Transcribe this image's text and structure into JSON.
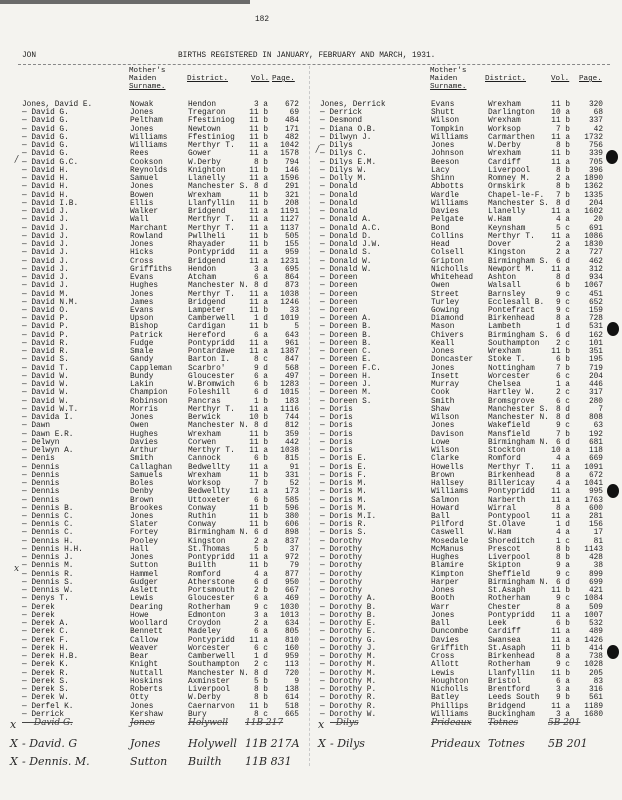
{
  "page_number": "182",
  "section_code": "JON",
  "title": "BIRTHS REGISTERED IN JANUARY, FEBRUARY AND MARCH, 1931.",
  "columns": {
    "mother_1": "Mother's",
    "mother_2": "Maiden",
    "mother_3": "Surname.",
    "district": "District.",
    "vol": "Vol.",
    "page": "Page."
  },
  "left": {
    "entries": [
      [
        "Jones, David E.",
        "Nowak",
        "Hendon",
        "3 a",
        "672"
      ],
      [
        "— David G.",
        "Jones",
        "Tregaron",
        "11 b",
        "69"
      ],
      [
        "— David G.",
        "Peltham",
        "Ffestiniog",
        "11 b",
        "484"
      ],
      [
        "— David G.",
        "Jones",
        "Newtown",
        "11 b",
        "171"
      ],
      [
        "— David G.",
        "Williams",
        "Ffestiniog",
        "11 b",
        "482"
      ],
      [
        "— David G.",
        "Williams",
        "Merthyr T.",
        "11 a",
        "1042"
      ],
      [
        "— David G.",
        "Rees",
        "Gower",
        "11 a",
        "1578"
      ],
      [
        "— David G.C.",
        "Cookson",
        "W.Derby",
        "8 b",
        "794"
      ],
      [
        "— David H.",
        "Reynolds",
        "Knighton",
        "11 b",
        "146"
      ],
      [
        "— David H.",
        "Samuel",
        "Llanelly",
        "11 a",
        "1596"
      ],
      [
        "— David H.",
        "Jones",
        "Manchester S.",
        "8 d",
        "291"
      ],
      [
        "— David H.",
        "Bowen",
        "Wrexham",
        "11 b",
        "321"
      ],
      [
        "— David I.B.",
        "Ellis",
        "Llanfyllin",
        "11 b",
        "208"
      ],
      [
        "— David J.",
        "Walker",
        "Bridgend",
        "11 a",
        "1191"
      ],
      [
        "— David J.",
        "Wall",
        "Merthyr T.",
        "11 a",
        "1127"
      ],
      [
        "— David J.",
        "Marchant",
        "Merthyr T.",
        "11 a",
        "1137"
      ],
      [
        "— David J.",
        "Rowland",
        "Pwllheli",
        "11 b",
        "505"
      ],
      [
        "— David J.",
        "Jones",
        "Rhayader",
        "11 b",
        "155"
      ],
      [
        "— David J.",
        "Hicks",
        "Pontypridd",
        "11 a",
        "959"
      ],
      [
        "— David J.",
        "Cross",
        "Bridgend",
        "11 a",
        "1231"
      ],
      [
        "— David J.",
        "Griffiths",
        "Hendon",
        "3 a",
        "695"
      ],
      [
        "— David J.",
        "Evans",
        "Atcham",
        "6 a",
        "864"
      ],
      [
        "— David J.",
        "Hughes",
        "Manchester N.",
        "8 d",
        "873"
      ],
      [
        "— David M.",
        "Jones",
        "Merthyr T.",
        "11 a",
        "1038"
      ],
      [
        "— David N.M.",
        "James",
        "Bridgend",
        "11 a",
        "1246"
      ],
      [
        "— David O.",
        "Evans",
        "Lampeter",
        "11 b",
        "33"
      ],
      [
        "— David P.",
        "Upson",
        "Camberwell",
        "1 d",
        "1019"
      ],
      [
        "— David P.",
        "Bishop",
        "Cardigan",
        "11 b",
        "5"
      ],
      [
        "— David P.",
        "Patrick",
        "Hereford",
        "6 a",
        "643"
      ],
      [
        "— David R.",
        "Fudge",
        "Pontypridd",
        "11 a",
        "961"
      ],
      [
        "— David R.",
        "Smale",
        "Pontardawe",
        "11 a",
        "1387"
      ],
      [
        "— David S.",
        "Gandy",
        "Barton I.",
        "8 c",
        "847"
      ],
      [
        "— David T.",
        "Cappleman",
        "Scarbro'",
        "9 d",
        "568"
      ],
      [
        "— David W.",
        "Bundy",
        "Gloucester",
        "6 a",
        "497"
      ],
      [
        "— David W.",
        "Lakin",
        "W.Bromwich",
        "6 b",
        "1283"
      ],
      [
        "— David W.",
        "Champion",
        "Foleshill",
        "6 d",
        "1015"
      ],
      [
        "— David W.",
        "Robinson",
        "Pancras",
        "1 b",
        "183"
      ],
      [
        "— David W.T.",
        "Morris",
        "Merthyr T.",
        "11 a",
        "1116"
      ],
      [
        "— Davida I.",
        "Jones",
        "Berwick",
        "10 b",
        "744"
      ],
      [
        "— Dawn",
        "Owen",
        "Manchester N.",
        "8 d",
        "812"
      ],
      [
        "— Dawn E.R.",
        "Hughes",
        "Wrexham",
        "11 b",
        "359"
      ],
      [
        "— Delwyn",
        "Davies",
        "Corwen",
        "11 b",
        "442"
      ],
      [
        "— Delwyn A.",
        "Arthur",
        "Merthyr T.",
        "11 a",
        "1038"
      ],
      [
        "— Denis",
        "Smith",
        "Cannock",
        "6 b",
        "815"
      ],
      [
        "— Dennis",
        "Callaghan",
        "Bedwellty",
        "11 a",
        "91"
      ],
      [
        "— Dennis",
        "Samuels",
        "Wrexham",
        "11 b",
        "331"
      ],
      [
        "— Dennis",
        "Boles",
        "Worksop",
        "7 b",
        "52"
      ],
      [
        "— Dennis",
        "Denby",
        "Bedwellty",
        "11 a",
        "173"
      ],
      [
        "— Dennis",
        "Brown",
        "Uttoxeter",
        "6 b",
        "585"
      ],
      [
        "— Dennis B.",
        "Brookes",
        "Conway",
        "11 b",
        "596"
      ],
      [
        "— Dennis C.",
        "Jones",
        "Ruthin",
        "11 b",
        "380"
      ],
      [
        "— Dennis C.",
        "Slater",
        "Conway",
        "11 b",
        "606"
      ],
      [
        "— Dennis C.",
        "Fortey",
        "Birmingham N.",
        "6 d",
        "898"
      ],
      [
        "— Dennis H.",
        "Pooley",
        "Kingston",
        "2 a",
        "837"
      ],
      [
        "— Dennis H.H.",
        "Hall",
        "St.Thomas",
        "5 b",
        "37"
      ],
      [
        "— Dennis J.",
        "Jones",
        "Pontypridd",
        "11 a",
        "972"
      ],
      [
        "— Dennis M.",
        "Sutton",
        "Builth",
        "11 b",
        "79"
      ],
      [
        "— Dennis R.",
        "Hammel",
        "Romford",
        "4 a",
        "877"
      ],
      [
        "— Dennis S.",
        "Gudger",
        "Atherstone",
        "6 d",
        "950"
      ],
      [
        "— Dennis W.",
        "Aslett",
        "Portsmouth",
        "2 b",
        "667"
      ],
      [
        "— Denys T.",
        "Lewis",
        "Gloucester",
        "6 a",
        "469"
      ],
      [
        "— Derek",
        "Dearing",
        "Rotherham",
        "9 c",
        "1030"
      ],
      [
        "— Derek",
        "Howe",
        "Edmonton",
        "3 a",
        "1013"
      ],
      [
        "— Derek A.",
        "Woollard",
        "Croydon",
        "2 a",
        "634"
      ],
      [
        "— Derek C.",
        "Bennett",
        "Madeley",
        "6 a",
        "805"
      ],
      [
        "— Derek F.",
        "Callow",
        "Pontypridd",
        "11 a",
        "810"
      ],
      [
        "— Derek H.",
        "Weaver",
        "Worcester",
        "6 c",
        "160"
      ],
      [
        "— Derek H.B.",
        "Bear",
        "Camberwell",
        "1 d",
        "959"
      ],
      [
        "— Derek K.",
        "Knight",
        "Southampton",
        "2 c",
        "113"
      ],
      [
        "— Derek R.",
        "Nuttall",
        "Manchester N.",
        "8 d",
        "720"
      ],
      [
        "— Derek S.",
        "Hoskins",
        "Axminster",
        "5 b",
        "9"
      ],
      [
        "— Derek S.",
        "Roberts",
        "Liverpool",
        "8 b",
        "138"
      ],
      [
        "— Derek W.",
        "Otty",
        "W.Derby",
        "8 b",
        "614"
      ],
      [
        "— Derfel K.",
        "Jones",
        "Caernarvon",
        "11 b",
        "518"
      ],
      [
        "— Derrick",
        "Kershaw",
        "Bury",
        "8 c",
        "665"
      ]
    ],
    "handwritten": [
      {
        "mark": "x",
        "name": "— David G.",
        "mother": "Jones",
        "district": "Holywell",
        "ref": "11B 217",
        "struck": true
      },
      {
        "mark": "X",
        "name": "- David. G",
        "mother": "Jones",
        "district": "Holywell",
        "ref": "11B 217A",
        "struck": false
      },
      {
        "mark": "X",
        "name": "- Dennis. M.",
        "mother": "Sutton",
        "district": "Builth",
        "ref": "11B 831",
        "struck": false
      }
    ]
  },
  "right": {
    "entries": [
      [
        "Jones, Derrick",
        "Evans",
        "Wrexham",
        "11 b",
        "320"
      ],
      [
        "— Derrick",
        "Shutt",
        "Darlington",
        "10 a",
        "68"
      ],
      [
        "— Desmond",
        "Wilson",
        "Wrexham",
        "11 b",
        "337"
      ],
      [
        "— Diana O.B.",
        "Tompkin",
        "Worksop",
        "7 b",
        "42"
      ],
      [
        "— Dilwyn J.",
        "Williams",
        "Carmarthen",
        "11 a",
        "1732"
      ],
      [
        "— Dilys",
        "Jones",
        "W.Derby",
        "8 b",
        "756"
      ],
      [
        "— Dilys C.",
        "Johnson",
        "Wrexham",
        "11 b",
        "339"
      ],
      [
        "— Dilys E.M.",
        "Beeson",
        "Cardiff",
        "11 a",
        "705"
      ],
      [
        "— Dilys W.",
        "Lacy",
        "Liverpool",
        "8 b",
        "396"
      ],
      [
        "— Dolly M.",
        "Shinn",
        "Romney M.",
        "2 a",
        "1890"
      ],
      [
        "— Donald",
        "Abbotts",
        "Ormskirk",
        "8 b",
        "1362"
      ],
      [
        "— Donald",
        "Wardle",
        "Chapel-le-F.",
        "7 b",
        "1335"
      ],
      [
        "— Donald",
        "Williams",
        "Manchester S.",
        "8 d",
        "204"
      ],
      [
        "— Donald",
        "Davies",
        "Llanelly",
        "11 a",
        "1602"
      ],
      [
        "— Donald A.",
        "Pelgate",
        "W.Ham",
        "4 a",
        "20"
      ],
      [
        "— Donald A.C.",
        "Bond",
        "Keynsham",
        "5 c",
        "691"
      ],
      [
        "— Donald D.",
        "Collins",
        "Merthyr T.",
        "11 a",
        "1086"
      ],
      [
        "— Donald J.W.",
        "Head",
        "Dover",
        "2 a",
        "1830"
      ],
      [
        "— Donald S.",
        "Colsell",
        "Kingston",
        "2 a",
        "727"
      ],
      [
        "— Donald W.",
        "Gripton",
        "Birmingham S.",
        "6 d",
        "462"
      ],
      [
        "— Donald W.",
        "Nicholls",
        "Newport M.",
        "11 a",
        "312"
      ],
      [
        "— Doreen",
        "Whitehead",
        "Ashton",
        "8 d",
        "934"
      ],
      [
        "— Doreen",
        "Owen",
        "Walsall",
        "6 b",
        "1067"
      ],
      [
        "— Doreen",
        "Street",
        "Barnsley",
        "9 c",
        "451"
      ],
      [
        "— Doreen",
        "Turley",
        "Ecclesall B.",
        "9 c",
        "652"
      ],
      [
        "— Doreen",
        "Gowing",
        "Pontefract",
        "9 c",
        "159"
      ],
      [
        "— Doreen A.",
        "Diamond",
        "Birkenhead",
        "8 a",
        "728"
      ],
      [
        "— Doreen B.",
        "Mason",
        "Lambeth",
        "1 d",
        "531"
      ],
      [
        "— Doreen B.",
        "Chivers",
        "Birmingham S.",
        "6 d",
        "162"
      ],
      [
        "— Doreen B.",
        "Keall",
        "Southampton",
        "2 c",
        "101"
      ],
      [
        "— Doreen C.",
        "Jones",
        "Wrexham",
        "11 b",
        "351"
      ],
      [
        "— Doreen E.",
        "Doncaster",
        "Stoke T.",
        "6 b",
        "195"
      ],
      [
        "— Doreen F.C.",
        "Jones",
        "Nottingham",
        "7 b",
        "719"
      ],
      [
        "— Doreen H.",
        "Insett",
        "Worcester",
        "6 c",
        "204"
      ],
      [
        "— Doreen J.",
        "Murray",
        "Chelsea",
        "1 a",
        "446"
      ],
      [
        "— Doreen M.",
        "Cook",
        "Hartley W.",
        "2 c",
        "317"
      ],
      [
        "— Doreen S.",
        "Smith",
        "Bromsgrove",
        "6 c",
        "280"
      ],
      [
        "— Doris",
        "Shaw",
        "Manchester S.",
        "8 d",
        "7"
      ],
      [
        "— Doris",
        "Wilson",
        "Manchester N.",
        "8 d",
        "808"
      ],
      [
        "— Doris",
        "Jones",
        "Wakefield",
        "9 c",
        "63"
      ],
      [
        "— Doris",
        "Davison",
        "Mansfield",
        "7 b",
        "192"
      ],
      [
        "— Doris",
        "Lowe",
        "Birmingham N.",
        "6 d",
        "681"
      ],
      [
        "— Doris",
        "Wilson",
        "Stockton",
        "10 a",
        "118"
      ],
      [
        "— Doris E.",
        "Clarke",
        "Romford",
        "4 a",
        "669"
      ],
      [
        "— Doris E.",
        "Howells",
        "Merthyr T.",
        "11 a",
        "1091"
      ],
      [
        "— Doris F.",
        "Brown",
        "Birkenhead",
        "8 a",
        "672"
      ],
      [
        "— Doris M.",
        "Hallsey",
        "Billericay",
        "4 a",
        "1041"
      ],
      [
        "— Doris M.",
        "Williams",
        "Pontypridd",
        "11 a",
        "995"
      ],
      [
        "— Doris M.",
        "Salmon",
        "Narberth",
        "11 a",
        "1763"
      ],
      [
        "— Doris M.",
        "Howard",
        "Wirral",
        "8 a",
        "600"
      ],
      [
        "— Doris M.I.",
        "Ball",
        "Pontypool",
        "11 a",
        "281"
      ],
      [
        "— Doris R.",
        "Pilford",
        "St.Olave",
        "1 d",
        "156"
      ],
      [
        "— Doris S.",
        "Caswell",
        "W.Ham",
        "4 a",
        "17"
      ],
      [
        "— Dorothy",
        "Mosedale",
        "Shoreditch",
        "1 c",
        "81"
      ],
      [
        "— Dorothy",
        "McManus",
        "Prescot",
        "8 b",
        "1143"
      ],
      [
        "— Dorothy",
        "Hughes",
        "Liverpool",
        "8 b",
        "428"
      ],
      [
        "— Dorothy",
        "Blamire",
        "Skipton",
        "9 a",
        "38"
      ],
      [
        "— Dorothy",
        "Kimpton",
        "Sheffield",
        "9 c",
        "899"
      ],
      [
        "— Dorothy",
        "Harper",
        "Birmingham N.",
        "6 d",
        "699"
      ],
      [
        "— Dorothy",
        "Jones",
        "St.Asaph",
        "11 b",
        "421"
      ],
      [
        "— Dorothy A.",
        "Booth",
        "Rotherham",
        "9 c",
        "1084"
      ],
      [
        "— Dorothy B.",
        "Warr",
        "Chester",
        "8 a",
        "509"
      ],
      [
        "— Dorothy B.",
        "Jones",
        "Pontypridd",
        "11 a",
        "1007"
      ],
      [
        "— Dorothy E.",
        "Ball",
        "Leek",
        "6 b",
        "532"
      ],
      [
        "— Dorothy E.",
        "Duncombe",
        "Cardiff",
        "11 a",
        "489"
      ],
      [
        "— Dorothy G.",
        "Davies",
        "Swansea",
        "11 a",
        "1426"
      ],
      [
        "— Dorothy J.",
        "Griffith",
        "St.Asaph",
        "11 b",
        "414"
      ],
      [
        "— Dorothy M.",
        "Cross",
        "Birkenhead",
        "8 a",
        "738"
      ],
      [
        "— Dorothy M.",
        "Allott",
        "Rotherham",
        "9 c",
        "1028"
      ],
      [
        "— Dorothy M.",
        "Lewis",
        "Llanfyllin",
        "11 b",
        "205"
      ],
      [
        "— Dorothy M.",
        "Houghton",
        "Bristol",
        "6 a",
        "83"
      ],
      [
        "— Dorothy P.",
        "Nicholls",
        "Brentford",
        "3 a",
        "316"
      ],
      [
        "— Dorothy R.",
        "Batley",
        "Leeds South",
        "9 b",
        "561"
      ],
      [
        "— Dorothy R.",
        "Phillips",
        "Bridgend",
        "11 a",
        "1189"
      ],
      [
        "— Dorothy W.",
        "Williams",
        "Buckingham",
        "3 a",
        "1680"
      ]
    ],
    "handwritten": [
      {
        "mark": "x",
        "name": "- Dilys",
        "mother": "Prideaux",
        "district": "Totnes",
        "ref": "5B 201",
        "struck": true
      },
      {
        "mark": "X",
        "name": "- Dilys",
        "mother": "Prideaux",
        "district": "Totnes",
        "ref": "5B 201",
        "struck": false
      }
    ]
  },
  "margin_marks": {
    "tick": "/",
    "cross": "x"
  }
}
